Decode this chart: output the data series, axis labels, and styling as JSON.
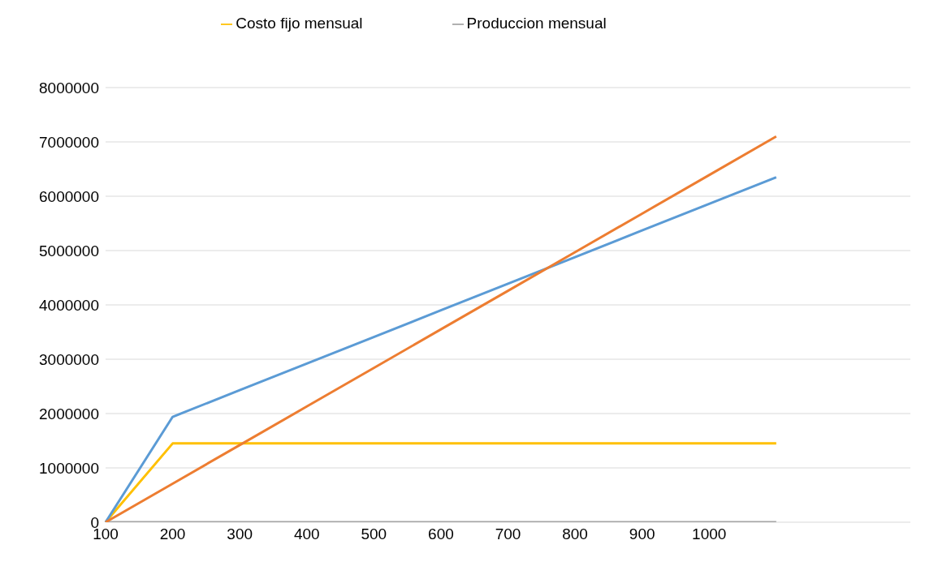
{
  "chart_data": {
    "type": "line",
    "categories": [
      "100",
      "200",
      "300",
      "400",
      "500",
      "600",
      "700",
      "800",
      "900",
      "1000",
      null,
      null,
      null
    ],
    "series": [
      {
        "name": "Produccion mensual",
        "color": "#a5a5a5",
        "values": [
          0,
          0,
          0,
          0,
          0,
          0,
          0,
          0,
          0,
          0,
          0,
          null,
          null
        ]
      },
      {
        "name": "Costo fijo mensual",
        "color": "#ffc000",
        "values": [
          0,
          1450000,
          1450000,
          1450000,
          1450000,
          1450000,
          1450000,
          1450000,
          1450000,
          1450000,
          1450000,
          null,
          null
        ]
      },
      {
        "color": "#5b9bd5",
        "values": [
          0,
          1940000,
          2430000,
          2920000,
          3410000,
          3900000,
          4390000,
          4880000,
          5370000,
          5860000,
          6350000,
          null,
          null
        ]
      },
      {
        "color": "#ed7d31",
        "values": [
          0,
          710000,
          1420000,
          2130000,
          2840000,
          3550000,
          4260000,
          4970000,
          5680000,
          6390000,
          7100000,
          null,
          null
        ]
      }
    ],
    "ylim": [
      0,
      8000000
    ],
    "yticks": [
      0,
      1000000,
      2000000,
      3000000,
      4000000,
      5000000,
      6000000,
      7000000,
      8000000
    ],
    "grid": "y",
    "legend": "top",
    "marker": "none",
    "line_style": "solid"
  }
}
